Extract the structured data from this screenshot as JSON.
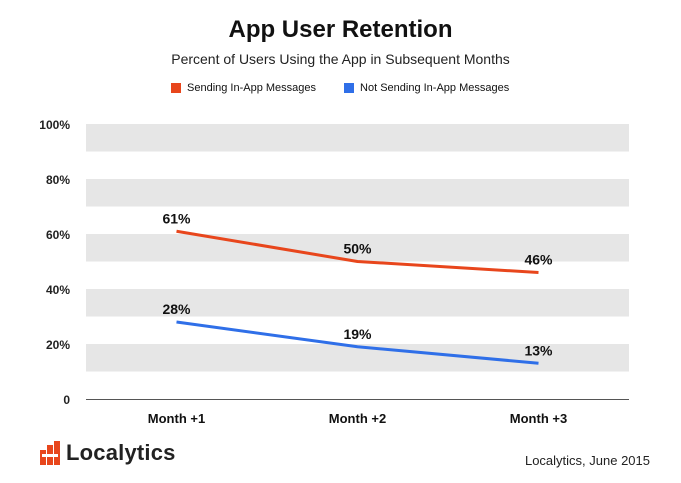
{
  "header": {
    "title": "App User Retention",
    "subtitle": "Percent of Users Using the App in Subsequent Months"
  },
  "footer": {
    "logo_text": "Localytics",
    "source": "Localytics, June 2015"
  },
  "colors": {
    "series_a": "#e8461c",
    "series_b": "#2f6fe8",
    "band": "#e6e6e6"
  },
  "chart_data": {
    "type": "line",
    "title": "App User Retention",
    "subtitle": "Percent of Users Using the App in Subsequent Months",
    "categories": [
      "Month +1",
      "Month +2",
      "Month +3"
    ],
    "series": [
      {
        "name": "Sending In-App Messages",
        "values": [
          61,
          50,
          46
        ],
        "labels": [
          "61%",
          "50%",
          "46%"
        ],
        "color": "#e8461c"
      },
      {
        "name": "Not Sending In-App Messages",
        "values": [
          28,
          19,
          13
        ],
        "labels": [
          "28%",
          "19%",
          "13%"
        ],
        "color": "#2f6fe8"
      }
    ],
    "yticks": [
      "0",
      "20%",
      "40%",
      "60%",
      "80%",
      "100%"
    ],
    "ytick_values": [
      0,
      20,
      40,
      60,
      80,
      100
    ],
    "ylim": [
      0,
      100
    ],
    "grid": "alternating horizontal bands",
    "legend": "top-center"
  }
}
